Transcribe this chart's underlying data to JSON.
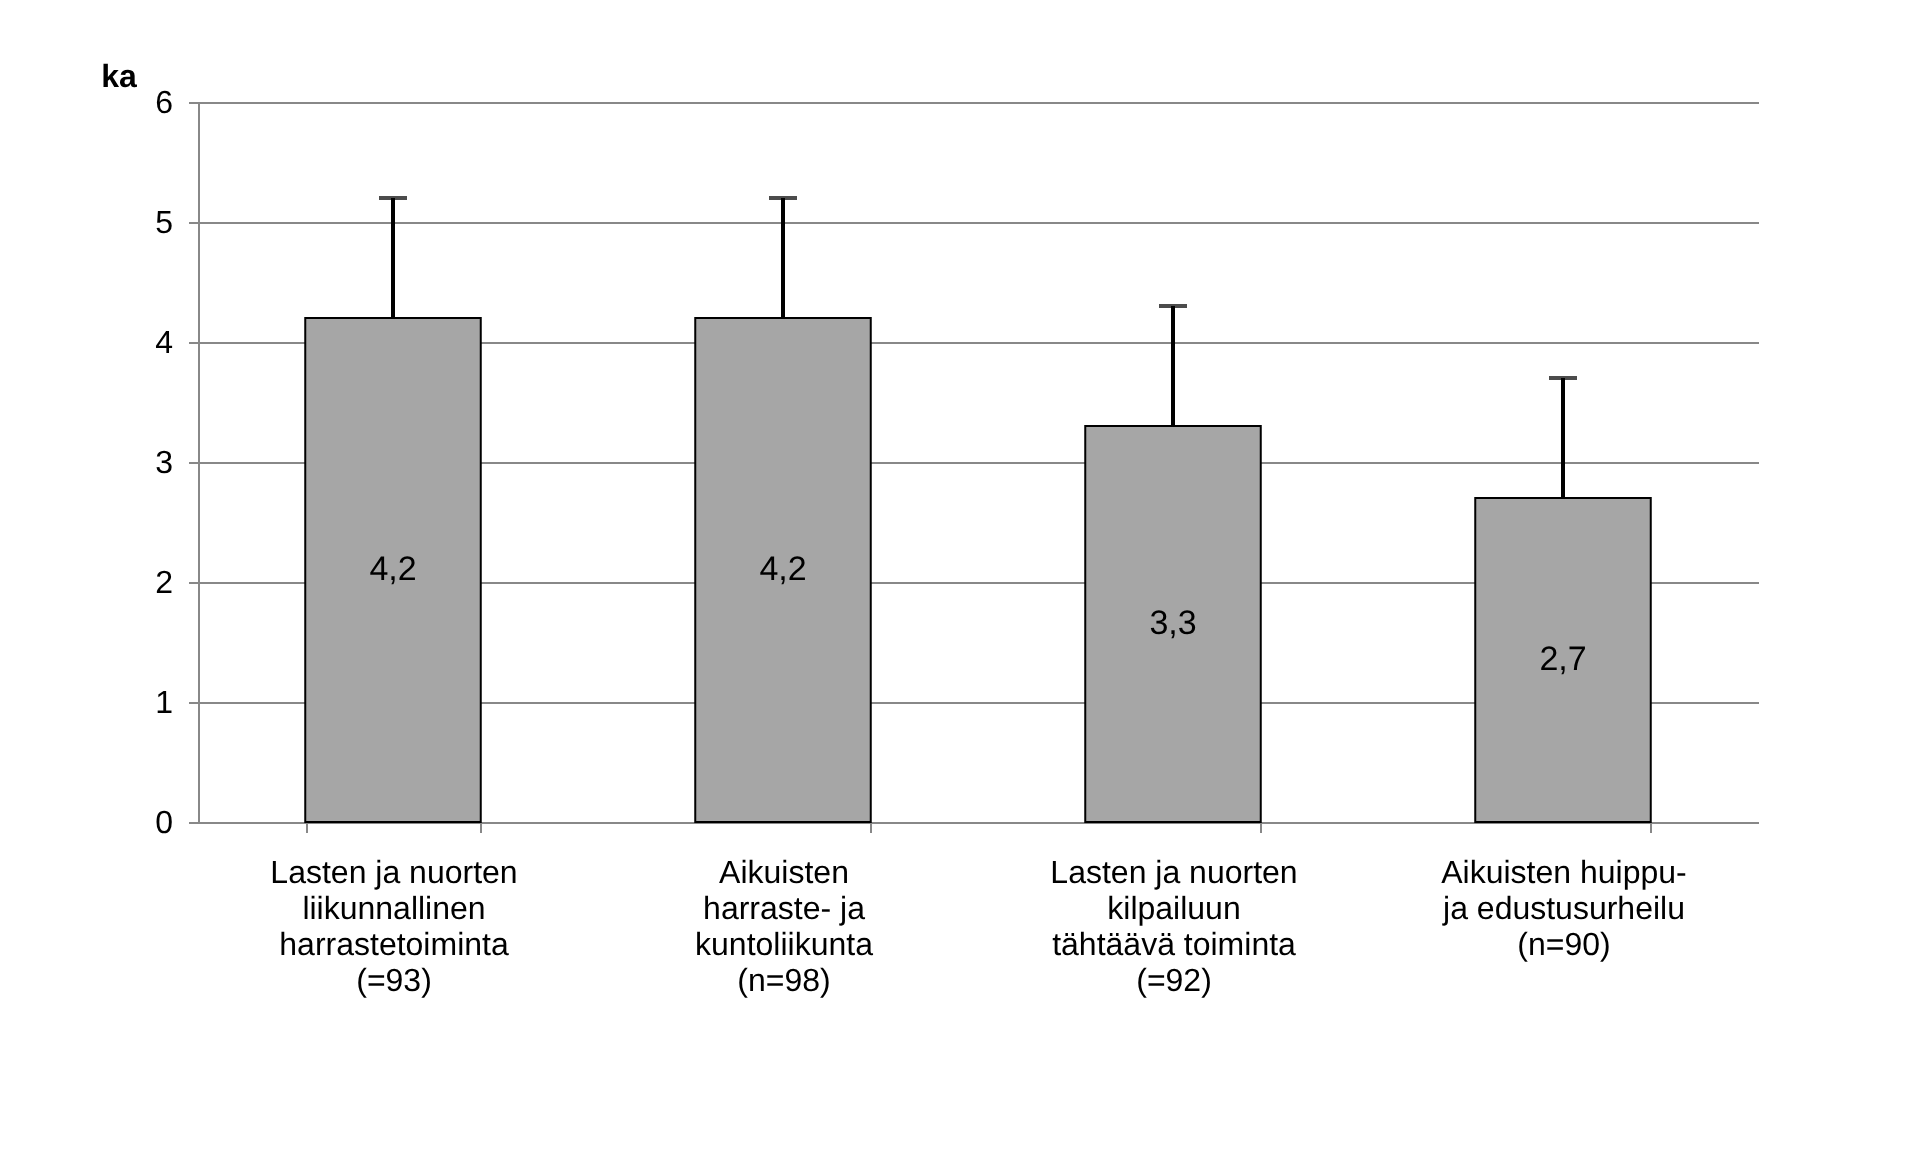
{
  "chart_data": {
    "type": "bar",
    "ylabel": "ka",
    "categories": [
      "Lasten ja nuorten\nliikunnallinen\nharrastetoiminta\n(=93)",
      "Aikuisten\nharraste- ja\nkuntoliikunta\n(n=98)",
      "Lasten ja nuorten\nkilpailuun\ntähtäävä toiminta\n(=92)",
      "Aikuisten huippu-\nja edustusurheilu\n(n=90)"
    ],
    "values": [
      4.2,
      4.2,
      3.3,
      2.7
    ],
    "color": "#a6a6a6",
    "errors": [
      [
        4.2,
        5.2
      ],
      [
        4.2,
        5.2
      ],
      [
        3.3,
        4.3
      ],
      [
        2.7,
        3.7
      ]
    ],
    "value_labels": [
      "4,2",
      "4,2",
      "3,3",
      "2,7"
    ],
    "ylim": [
      0,
      6
    ],
    "yticks": [
      0,
      1,
      2,
      3,
      4,
      5,
      6
    ],
    "grid": "y"
  }
}
